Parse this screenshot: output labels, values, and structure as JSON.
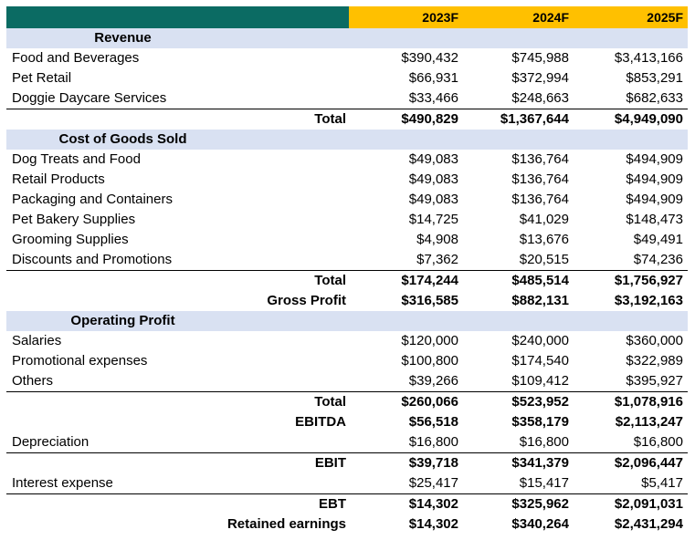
{
  "headers": [
    "2023F",
    "2024F",
    "2025F"
  ],
  "sections": {
    "revenue": "Revenue",
    "cogs": "Cost of Goods Sold",
    "opex": "Operating Profit"
  },
  "rows": {
    "food_bev": {
      "label": "Food and Beverages",
      "v": [
        "$390,432",
        "$745,988",
        "$3,413,166"
      ]
    },
    "pet_retail": {
      "label": "Pet Retail",
      "v": [
        "$66,931",
        "$372,994",
        "$853,291"
      ]
    },
    "daycare": {
      "label": "Doggie Daycare Services",
      "v": [
        "$33,466",
        "$248,663",
        "$682,633"
      ]
    },
    "rev_total": {
      "label": "Total",
      "v": [
        "$490,829",
        "$1,367,644",
        "$4,949,090"
      ]
    },
    "dog_treats": {
      "label": "Dog Treats and Food",
      "v": [
        "$49,083",
        "$136,764",
        "$494,909"
      ]
    },
    "retail_products": {
      "label": "Retail Products",
      "v": [
        "$49,083",
        "$136,764",
        "$494,909"
      ]
    },
    "packaging": {
      "label": "Packaging and Containers",
      "v": [
        "$49,083",
        "$136,764",
        "$494,909"
      ]
    },
    "bakery": {
      "label": "Pet Bakery Supplies",
      "v": [
        "$14,725",
        "$41,029",
        "$148,473"
      ]
    },
    "grooming": {
      "label": "Grooming Supplies",
      "v": [
        "$4,908",
        "$13,676",
        "$49,491"
      ]
    },
    "discounts": {
      "label": "Discounts and Promotions",
      "v": [
        "$7,362",
        "$20,515",
        "$74,236"
      ]
    },
    "cogs_total": {
      "label": "Total",
      "v": [
        "$174,244",
        "$485,514",
        "$1,756,927"
      ]
    },
    "gross_profit": {
      "label": "Gross Profit",
      "v": [
        "$316,585",
        "$882,131",
        "$3,192,163"
      ]
    },
    "salaries": {
      "label": "Salaries",
      "v": [
        "$120,000",
        "$240,000",
        "$360,000"
      ]
    },
    "promo": {
      "label": "Promotional expenses",
      "v": [
        "$100,800",
        "$174,540",
        "$322,989"
      ]
    },
    "others": {
      "label": "Others",
      "v": [
        "$39,266",
        "$109,412",
        "$395,927"
      ]
    },
    "opex_total": {
      "label": "Total",
      "v": [
        "$260,066",
        "$523,952",
        "$1,078,916"
      ]
    },
    "ebitda": {
      "label": "EBITDA",
      "v": [
        "$56,518",
        "$358,179",
        "$2,113,247"
      ]
    },
    "depreciation": {
      "label": "Depreciation",
      "v": [
        "$16,800",
        "$16,800",
        "$16,800"
      ]
    },
    "ebit": {
      "label": "EBIT",
      "v": [
        "$39,718",
        "$341,379",
        "$2,096,447"
      ]
    },
    "interest": {
      "label": "Interest expense",
      "v": [
        "$25,417",
        "$15,417",
        "$5,417"
      ]
    },
    "ebt": {
      "label": "EBT",
      "v": [
        "$14,302",
        "$325,962",
        "$2,091,031"
      ]
    },
    "retained": {
      "label": "Retained earnings",
      "v": [
        "$14,302",
        "$340,264",
        "$2,431,294"
      ]
    }
  },
  "colors": {
    "header_teal": "#0b6b63",
    "header_gold": "#ffc000",
    "section_band": "#d9e1f2"
  }
}
